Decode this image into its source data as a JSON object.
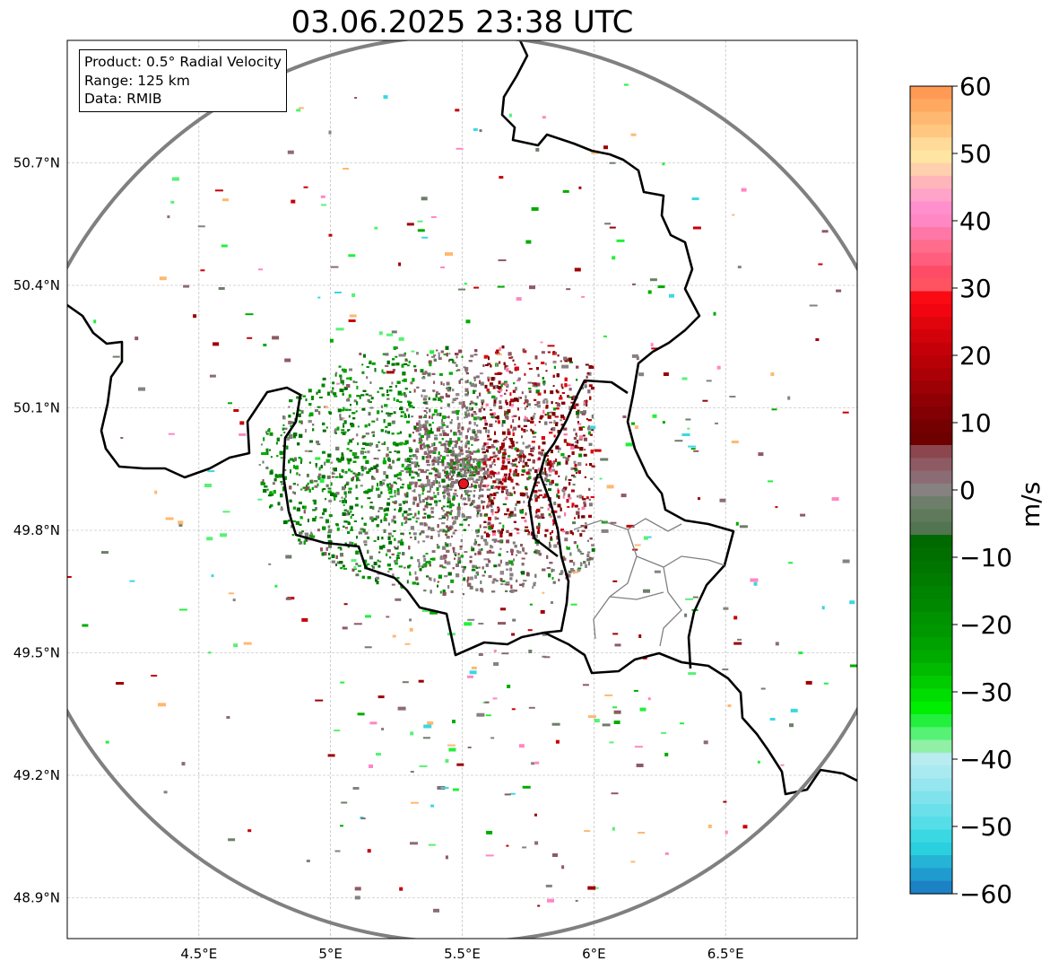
{
  "title": "03.06.2025 23:38 UTC",
  "info_box": {
    "product": "Product: 0.5° Radial Velocity",
    "range": "Range: 125 km",
    "data": "Data: RMIB"
  },
  "map": {
    "lon_range": [
      4.0,
      7.0
    ],
    "lat_range": [
      48.8,
      51.0
    ],
    "x_ticks": [
      {
        "value": 4.5,
        "label": "4.5°E"
      },
      {
        "value": 5.0,
        "label": "5°E"
      },
      {
        "value": 5.5,
        "label": "5.5°E"
      },
      {
        "value": 6.0,
        "label": "6°E"
      },
      {
        "value": 6.5,
        "label": "6.5°E"
      }
    ],
    "y_ticks": [
      {
        "value": 48.9,
        "label": "48.9°N"
      },
      {
        "value": 49.2,
        "label": "49.2°N"
      },
      {
        "value": 49.5,
        "label": "49.5°N"
      },
      {
        "value": 49.8,
        "label": "49.8°N"
      },
      {
        "value": 50.1,
        "label": "50.1°N"
      },
      {
        "value": 50.4,
        "label": "50.4°N"
      },
      {
        "value": 50.7,
        "label": "50.7°N"
      }
    ],
    "radar_site": {
      "lon": 5.505,
      "lat": 49.914,
      "color": "#e8141c"
    },
    "range_ring_color": "#808080",
    "grid": true
  },
  "colorbar": {
    "unit": "m/s",
    "min": -60,
    "max": 60,
    "ticks": [
      60,
      50,
      40,
      30,
      20,
      10,
      0,
      -10,
      -20,
      -30,
      -40,
      -50,
      -60
    ],
    "tick_labels": [
      "60",
      "50",
      "40",
      "30",
      "20",
      "10",
      "0",
      "−10",
      "−20",
      "−30",
      "−40",
      "−50",
      "−60"
    ],
    "colors_top_to_bottom": [
      "#ff9a55",
      "#ffa860",
      "#ffb871",
      "#ffc780",
      "#ffda98",
      "#ffe5a2",
      "#ffd0ad",
      "#ffb5ba",
      "#ffa3c8",
      "#ff8fcd",
      "#ff87c3",
      "#ff77a6",
      "#ff6c8c",
      "#ff5e7c",
      "#ff4c66",
      "#ff5361",
      "#fa0a12",
      "#f00510",
      "#e0040c",
      "#d2020a",
      "#c50008",
      "#b80007",
      "#aa0006",
      "#9d0005",
      "#8f0004",
      "#820003",
      "#750002",
      "#6e0000",
      "#8c464e",
      "#8e5a64",
      "#8c6c74",
      "#878181",
      "#6d7e6a",
      "#5f7a5a",
      "#527450",
      "#006a00",
      "#006f00",
      "#007500",
      "#007c00",
      "#008300",
      "#008900",
      "#009200",
      "#009800",
      "#00a200",
      "#00ab00",
      "#00bb00",
      "#00cc00",
      "#00dd00",
      "#00ee00",
      "#22f03c",
      "#55f275",
      "#90f0a6",
      "#b8ecf0",
      "#a8eaf0",
      "#95e6ee",
      "#7fe2ec",
      "#69e0ea",
      "#55dee8",
      "#3ad8e2",
      "#2bd0de",
      "#25b3d6",
      "#209bd0",
      "#1c82c4"
    ]
  }
}
